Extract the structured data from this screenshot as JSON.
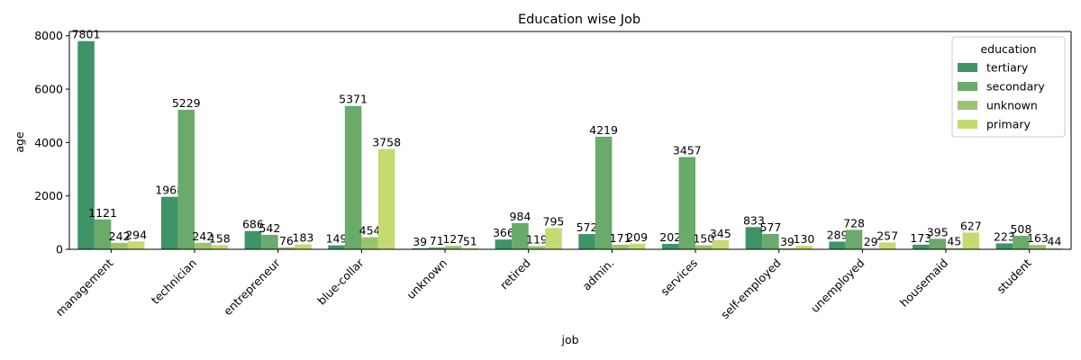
{
  "chart_data": {
    "type": "bar",
    "title": "Education wise Job",
    "xlabel": "job",
    "ylabel": "age",
    "ylim": [
      0,
      8160
    ],
    "yticks": [
      0,
      2000,
      4000,
      6000,
      8000
    ],
    "grid": false,
    "legend": {
      "title": "education",
      "placement": "top-right"
    },
    "categories": [
      "management",
      "technician",
      "entrepreneur",
      "blue-collar",
      "unknown",
      "retired",
      "admin.",
      "services",
      "self-employed",
      "unemployed",
      "housemaid",
      "student"
    ],
    "series": [
      {
        "name": "tertiary",
        "color": "#3e9467",
        "values": [
          7801,
          1968,
          686,
          149,
          39,
          366,
          572,
          202,
          833,
          289,
          173,
          223
        ]
      },
      {
        "name": "secondary",
        "color": "#6aaa6a",
        "values": [
          1121,
          5229,
          542,
          5371,
          71,
          984,
          4219,
          3457,
          577,
          728,
          395,
          508
        ]
      },
      {
        "name": "unknown",
        "color": "#99c46e",
        "values": [
          242,
          242,
          76,
          454,
          127,
          119,
          171,
          150,
          39,
          29,
          45,
          163
        ]
      },
      {
        "name": "primary",
        "color": "#c4da72",
        "values": [
          294,
          158,
          183,
          3758,
          51,
          795,
          209,
          345,
          130,
          257,
          627,
          44
        ]
      }
    ]
  }
}
